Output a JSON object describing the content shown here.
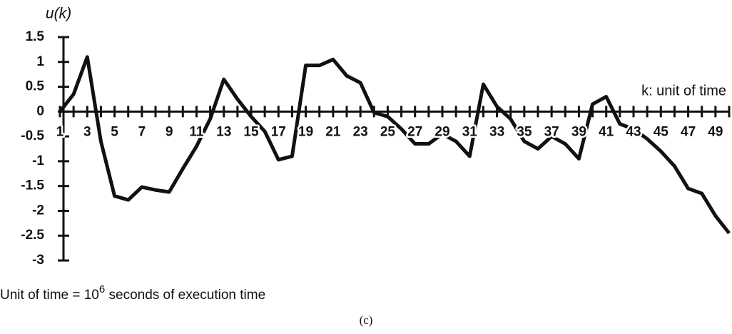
{
  "chart_data": {
    "type": "line",
    "y_label": "u(k)",
    "x_label": "k: unit of time",
    "footnote": [
      "Unit of time = 10",
      "6",
      " seconds of execution time"
    ],
    "caption": "(c)",
    "x": [
      1,
      2,
      3,
      4,
      5,
      6,
      7,
      8,
      9,
      10,
      11,
      12,
      13,
      14,
      15,
      16,
      17,
      18,
      19,
      20,
      21,
      22,
      23,
      24,
      25,
      26,
      27,
      28,
      29,
      30,
      31,
      32,
      33,
      34,
      35,
      36,
      37,
      38,
      39,
      40,
      41,
      42,
      43,
      44,
      45,
      46,
      47,
      48,
      49,
      50
    ],
    "series": [
      {
        "name": "u(k)",
        "color": "#111111",
        "values": [
          0,
          0.35,
          1.1,
          -0.6,
          -1.7,
          -1.78,
          -1.52,
          -1.58,
          -1.62,
          -1.15,
          -0.7,
          -0.15,
          0.65,
          0.25,
          -0.1,
          -0.4,
          -0.97,
          -0.9,
          0.93,
          0.93,
          1.05,
          0.72,
          0.58,
          -0.02,
          -0.1,
          -0.35,
          -0.65,
          -0.65,
          -0.45,
          -0.6,
          -0.9,
          0.55,
          0.1,
          -0.15,
          -0.6,
          -0.75,
          -0.5,
          -0.65,
          -0.95,
          0.15,
          0.3,
          -0.25,
          -0.35,
          -0.55,
          -0.8,
          -1.1,
          -1.55,
          -1.65,
          -2.1,
          -2.45
        ]
      }
    ],
    "xlim": [
      1,
      50
    ],
    "xticks": [
      1,
      3,
      5,
      7,
      9,
      11,
      13,
      15,
      17,
      19,
      21,
      23,
      25,
      27,
      29,
      31,
      33,
      35,
      37,
      39,
      41,
      43,
      45,
      47,
      49
    ],
    "ylim": [
      -3,
      1.5
    ],
    "yticks": [
      -3,
      -2.5,
      -2,
      -1.5,
      -1,
      -0.5,
      0,
      0.5,
      1,
      1.5
    ]
  }
}
